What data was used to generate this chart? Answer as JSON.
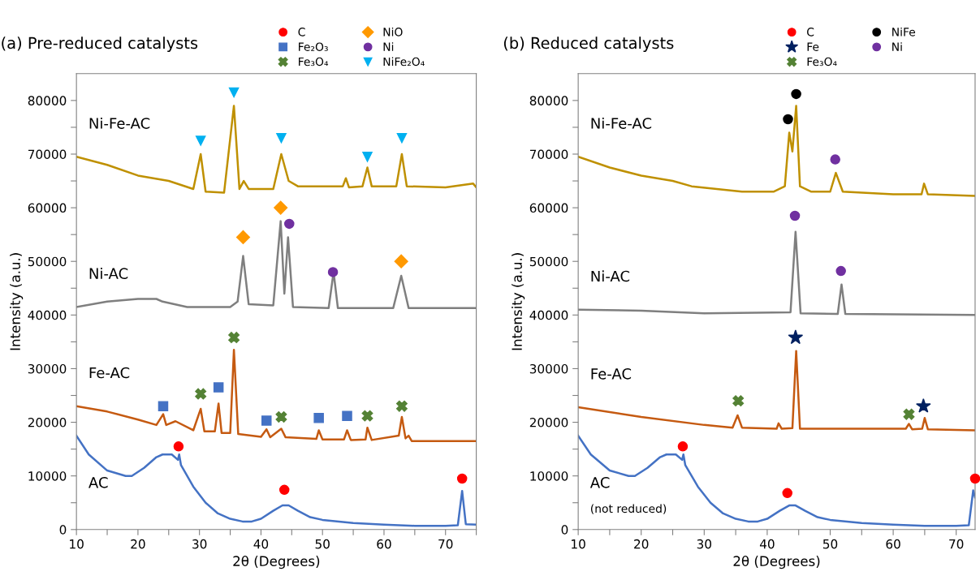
{
  "chart_data": [
    {
      "type": "line",
      "title": "(a) Pre-reduced catalysts",
      "xlabel": "2θ (Degrees)",
      "ylabel": "Intensity (a.u.)",
      "xlim": [
        10,
        75
      ],
      "ylim": [
        0,
        85000
      ],
      "xticks": [
        10,
        {
          "value": 15,
          "label": null
        },
        20,
        {
          "value": 25,
          "label": null
        },
        30,
        {
          "value": 35,
          "label": null
        },
        40,
        {
          "value": 45,
          "label": null
        },
        50,
        {
          "value": 55,
          "label": null
        },
        60,
        {
          "value": 65,
          "label": null
        },
        70,
        {
          "value": 75,
          "label": null
        }
      ],
      "yticks": [
        0,
        {
          "value": 5000,
          "label": null
        },
        10000,
        {
          "value": 15000,
          "label": null
        },
        20000,
        {
          "value": 25000,
          "label": null
        },
        30000,
        {
          "value": 35000,
          "label": null
        },
        40000,
        {
          "value": 45000,
          "label": null
        },
        50000,
        {
          "value": 55000,
          "label": null
        },
        60000,
        {
          "value": 65000,
          "label": null
        },
        70000,
        {
          "value": 75000,
          "label": null
        },
        80000
      ],
      "grid": false,
      "legend": "top",
      "line_style": "solid",
      "series": [
        {
          "name": "Ni-Fe-AC",
          "color": "#bf9000",
          "x": [
            10,
            15,
            20,
            25,
            29,
            30.2,
            31,
            34,
            35.6,
            36.5,
            37.2,
            38,
            42,
            43.3,
            44.5,
            46,
            53.3,
            53.8,
            54.3,
            56.5,
            57.3,
            58,
            62,
            62.9,
            63.7,
            70,
            74.5,
            75
          ],
          "values": [
            69500,
            68000,
            66000,
            65000,
            63500,
            70000,
            63000,
            62800,
            79000,
            63500,
            65000,
            63500,
            63500,
            70000,
            65000,
            64000,
            64000,
            65500,
            63800,
            64000,
            67500,
            64000,
            64000,
            70000,
            64000,
            63800,
            64500,
            63800
          ]
        },
        {
          "name": "Ni-AC",
          "color": "#7f7f7f",
          "x": [
            10,
            15,
            20,
            23,
            24,
            28,
            35,
            36.2,
            37.1,
            38,
            42,
            43.2,
            43.8,
            44.4,
            45.2,
            51,
            51.8,
            52.5,
            61.5,
            62.8,
            64,
            75
          ],
          "values": [
            41500,
            42500,
            43000,
            43000,
            42500,
            41500,
            41500,
            42500,
            51000,
            42000,
            41800,
            57500,
            44000,
            54500,
            41500,
            41300,
            48000,
            41300,
            41300,
            47300,
            41300,
            41300
          ]
        },
        {
          "name": "Fe-AC",
          "color": "#c55a11",
          "x": [
            10,
            15,
            20,
            23,
            24.1,
            24.6,
            26.1,
            29,
            30.2,
            30.8,
            32.5,
            33.1,
            33.6,
            35,
            35.6,
            36.3,
            40,
            40.9,
            41.5,
            43.3,
            44,
            49,
            49.4,
            50,
            53.5,
            54,
            54.6,
            57,
            57.3,
            58,
            62.4,
            62.9,
            63.5,
            64,
            64.5,
            75
          ],
          "values": [
            23000,
            22000,
            20500,
            19500,
            21500,
            19500,
            20200,
            18500,
            22500,
            18300,
            18300,
            23500,
            18000,
            18000,
            33500,
            17800,
            17300,
            18700,
            17200,
            18800,
            17200,
            16900,
            18500,
            16800,
            16800,
            18500,
            16700,
            16800,
            19000,
            16700,
            17500,
            21000,
            17000,
            17500,
            16500,
            16500
          ]
        },
        {
          "name": "AC",
          "color": "#4472c4",
          "x": [
            10,
            12,
            15,
            18,
            19,
            21,
            23,
            24,
            25.5,
            26.5,
            26.7,
            27,
            29,
            31,
            33,
            35,
            37,
            38.5,
            40,
            42,
            43.5,
            44.5,
            46,
            48,
            50,
            55,
            60,
            65,
            70,
            72,
            72.7,
            73.3,
            75
          ],
          "values": [
            17500,
            14000,
            11000,
            10000,
            10000,
            11500,
            13500,
            14000,
            14000,
            13000,
            14000,
            12000,
            8000,
            5000,
            3000,
            2000,
            1500,
            1500,
            2000,
            3500,
            4500,
            4500,
            3500,
            2300,
            1800,
            1200,
            900,
            700,
            700,
            800,
            7200,
            1000,
            900
          ]
        },
        {
          "name": "C",
          "type": "scatter",
          "marker": "circle",
          "color": "#ff0000",
          "x": [
            26.6,
            43.8,
            72.7
          ],
          "values": [
            15500,
            7400,
            9500
          ]
        },
        {
          "name": "Fe₂O₃",
          "type": "scatter",
          "marker": "square",
          "color": "#4472c4",
          "x": [
            24.1,
            33.1,
            40.9,
            49.4,
            54
          ],
          "values": [
            23000,
            26500,
            20300,
            20800,
            21200
          ]
        },
        {
          "name": "Fe₃O₄",
          "type": "scatter",
          "marker": "cross",
          "color": "#548235",
          "x": [
            30.2,
            35.6,
            43.3,
            57.3,
            62.9
          ],
          "values": [
            25300,
            35800,
            21000,
            21200,
            23000
          ]
        },
        {
          "name": "NiO",
          "type": "scatter",
          "marker": "diamond",
          "color": "#ff9900",
          "x": [
            37.1,
            43.2,
            62.8
          ],
          "values": [
            54500,
            60000,
            50000
          ]
        },
        {
          "name": "Ni",
          "type": "scatter",
          "marker": "circle",
          "color": "#7030a0",
          "x": [
            44.6,
            51.7
          ],
          "values": [
            57000,
            48000
          ]
        },
        {
          "name": "NiFe₂O₄",
          "type": "scatter",
          "marker": "triangle",
          "color": "#00b0f0",
          "x": [
            30.2,
            35.6,
            43.3,
            57.3,
            62.9
          ],
          "values": [
            72500,
            81500,
            73000,
            69500,
            73000
          ]
        }
      ]
    },
    {
      "type": "line",
      "title": "(b) Reduced catalysts",
      "xlabel": "2θ (Degrees)",
      "ylabel": "Intensity (a.u.)",
      "xlim": [
        10,
        73
      ],
      "ylim": [
        0,
        85000
      ],
      "xticks": [
        10,
        {
          "value": 15,
          "label": null
        },
        20,
        {
          "value": 25,
          "label": null
        },
        30,
        {
          "value": 35,
          "label": null
        },
        40,
        {
          "value": 45,
          "label": null
        },
        50,
        {
          "value": 55,
          "label": null
        },
        60,
        {
          "value": 65,
          "label": null
        },
        70
      ],
      "yticks": [
        0,
        {
          "value": 5000,
          "label": null
        },
        10000,
        {
          "value": 15000,
          "label": null
        },
        20000,
        {
          "value": 25000,
          "label": null
        },
        30000,
        {
          "value": 35000,
          "label": null
        },
        40000,
        {
          "value": 45000,
          "label": null
        },
        50000,
        {
          "value": 55000,
          "label": null
        },
        60000,
        {
          "value": 65000,
          "label": null
        },
        70000,
        {
          "value": 75000,
          "label": null
        },
        80000
      ],
      "grid": false,
      "legend": "top",
      "line_style": "solid",
      "annotations": [
        "(not reduced)"
      ],
      "series": [
        {
          "name": "Ni-Fe-AC",
          "color": "#bf9000",
          "x": [
            10,
            15,
            20,
            25,
            28,
            32,
            36,
            41,
            42.8,
            43.5,
            44,
            44.6,
            45.2,
            47,
            50,
            50.9,
            52,
            60,
            64.5,
            64.9,
            65.5,
            73
          ],
          "values": [
            69500,
            67500,
            66000,
            65000,
            64000,
            63500,
            63000,
            63000,
            64000,
            74000,
            70500,
            79000,
            64000,
            63000,
            63000,
            66500,
            63000,
            62500,
            62500,
            64500,
            62500,
            62200
          ]
        },
        {
          "name": "Ni-AC",
          "color": "#7f7f7f",
          "x": [
            10,
            20,
            30,
            43.7,
            44.5,
            45.3,
            51.2,
            51.8,
            52.4,
            73
          ],
          "values": [
            41000,
            40800,
            40300,
            40500,
            55500,
            40300,
            40200,
            45700,
            40200,
            40000
          ]
        },
        {
          "name": "Fe-AC",
          "color": "#c55a11",
          "x": [
            10,
            20,
            30,
            34.5,
            35.3,
            36,
            41.5,
            41.8,
            42.3,
            44,
            44.6,
            45.2,
            55,
            62,
            62.5,
            63,
            64.6,
            65,
            65.5,
            73
          ],
          "values": [
            22800,
            21000,
            19500,
            19000,
            21300,
            19000,
            18800,
            19800,
            18800,
            18900,
            33300,
            18800,
            18800,
            18800,
            19700,
            18700,
            18800,
            20800,
            18700,
            18500
          ]
        },
        {
          "name": "AC",
          "color": "#4472c4",
          "x": [
            10,
            12,
            15,
            18,
            19,
            21,
            23,
            24,
            25.5,
            26.5,
            26.7,
            27,
            29,
            31,
            33,
            35,
            37,
            38.5,
            40,
            42,
            43.5,
            44.5,
            46,
            48,
            50,
            55,
            60,
            65,
            70,
            72,
            72.7,
            73
          ],
          "values": [
            17500,
            14000,
            11000,
            10000,
            10000,
            11500,
            13500,
            14000,
            14000,
            13000,
            14000,
            12000,
            8000,
            5000,
            3000,
            2000,
            1500,
            1500,
            2000,
            3500,
            4500,
            4500,
            3500,
            2300,
            1800,
            1200,
            900,
            700,
            700,
            800,
            7300,
            6000
          ]
        },
        {
          "name": "C",
          "type": "scatter",
          "marker": "circle",
          "color": "#ff0000",
          "x": [
            26.6,
            43.2,
            73
          ],
          "values": [
            15500,
            6800,
            9500
          ]
        },
        {
          "name": "Fe",
          "type": "scatter",
          "marker": "star",
          "color": "#002060",
          "x": [
            44.5,
            64.8
          ],
          "values": [
            35800,
            23000
          ]
        },
        {
          "name": "Fe₃O₄",
          "type": "scatter",
          "marker": "cross",
          "color": "#548235",
          "x": [
            35.4,
            62.5
          ],
          "values": [
            24000,
            21500
          ]
        },
        {
          "name": "NiFe",
          "type": "scatter",
          "marker": "circle",
          "color": "#000000",
          "x": [
            43.3,
            44.6
          ],
          "values": [
            76500,
            81200
          ]
        },
        {
          "name": "Ni",
          "type": "scatter",
          "marker": "circle",
          "color": "#7030a0",
          "x": [
            44.4,
            51.7,
            50.8
          ],
          "values": [
            58500,
            48200,
            69000
          ]
        }
      ]
    }
  ]
}
